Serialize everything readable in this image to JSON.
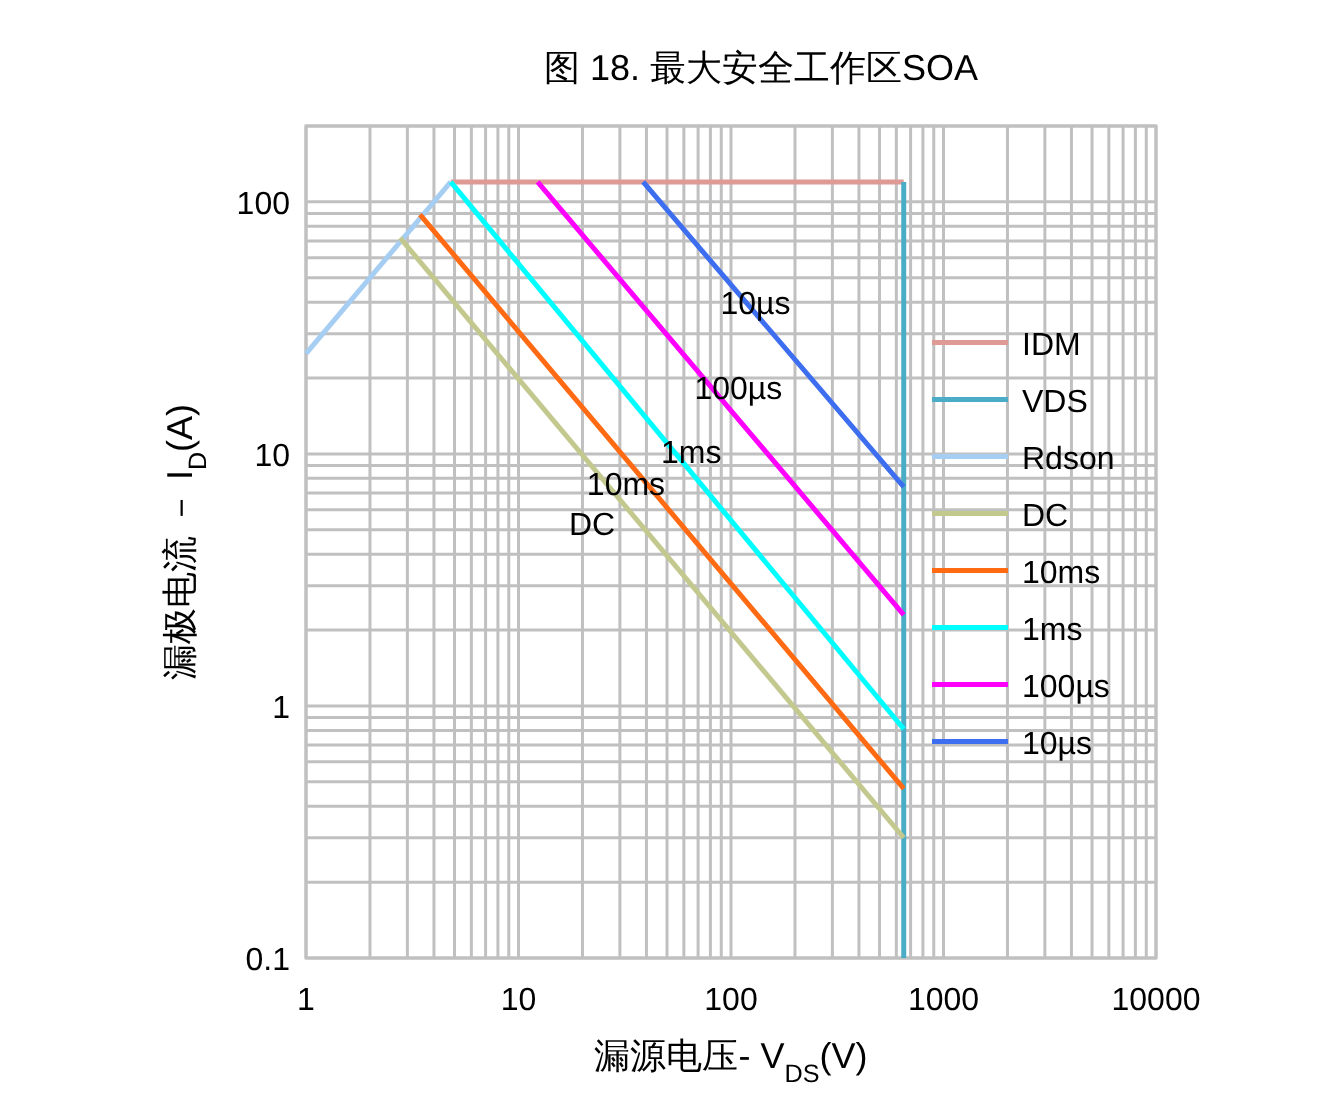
{
  "chart_data": {
    "type": "line",
    "title": "图 18. 最大安全工作区SOA",
    "xlabel": "漏源电压- V$_{DS}$(V)",
    "ylabel": "漏极电流 － I$_{D}$(A)",
    "log": "xy",
    "xlim": [
      1,
      10000
    ],
    "ylim": [
      0.1,
      200
    ],
    "xticks": [
      1,
      10,
      100,
      1000,
      10000
    ],
    "yticks": [
      0.1,
      1,
      10,
      100
    ],
    "grid": true,
    "legend": "right",
    "series": [
      {
        "name": "IDM",
        "color": "#e09a96",
        "x": [
          4.8,
          650
        ],
        "values": [
          120,
          120
        ]
      },
      {
        "name": "VDS",
        "color": "#4bacc6",
        "x": [
          650,
          650
        ],
        "values": [
          120,
          0.1
        ]
      },
      {
        "name": "Rdson",
        "color": "#a6cdf2",
        "x": [
          1,
          4.8
        ],
        "values": [
          25,
          120
        ]
      },
      {
        "name": "DC",
        "color": "#c3c98e",
        "x": [
          2.77,
          650
        ],
        "values": [
          72,
          0.3
        ]
      },
      {
        "name": "10ms",
        "color": "#ff6a13",
        "x": [
          3.44,
          650
        ],
        "values": [
          89,
          0.47
        ]
      },
      {
        "name": "1ms",
        "color": "#00ffff",
        "x": [
          4.8,
          650
        ],
        "values": [
          120,
          0.81
        ]
      },
      {
        "name": "100µs",
        "color": "#ff00ff",
        "x": [
          12.3,
          650
        ],
        "values": [
          120,
          2.3
        ]
      },
      {
        "name": "10µs",
        "color": "#3d6ef0",
        "x": [
          38.6,
          650
        ],
        "values": [
          120,
          7.4
        ]
      }
    ],
    "annotations": [
      {
        "text": "10µs",
        "x": 117,
        "y": 40
      },
      {
        "text": "100µs",
        "x": 80,
        "y": 18.5
      },
      {
        "text": "1ms",
        "x": 53.5,
        "y": 10.3
      },
      {
        "text": "10ms",
        "x": 39.8,
        "y": 7.7
      },
      {
        "text": "DC",
        "x": 37.3,
        "y": 5.3
      }
    ]
  }
}
